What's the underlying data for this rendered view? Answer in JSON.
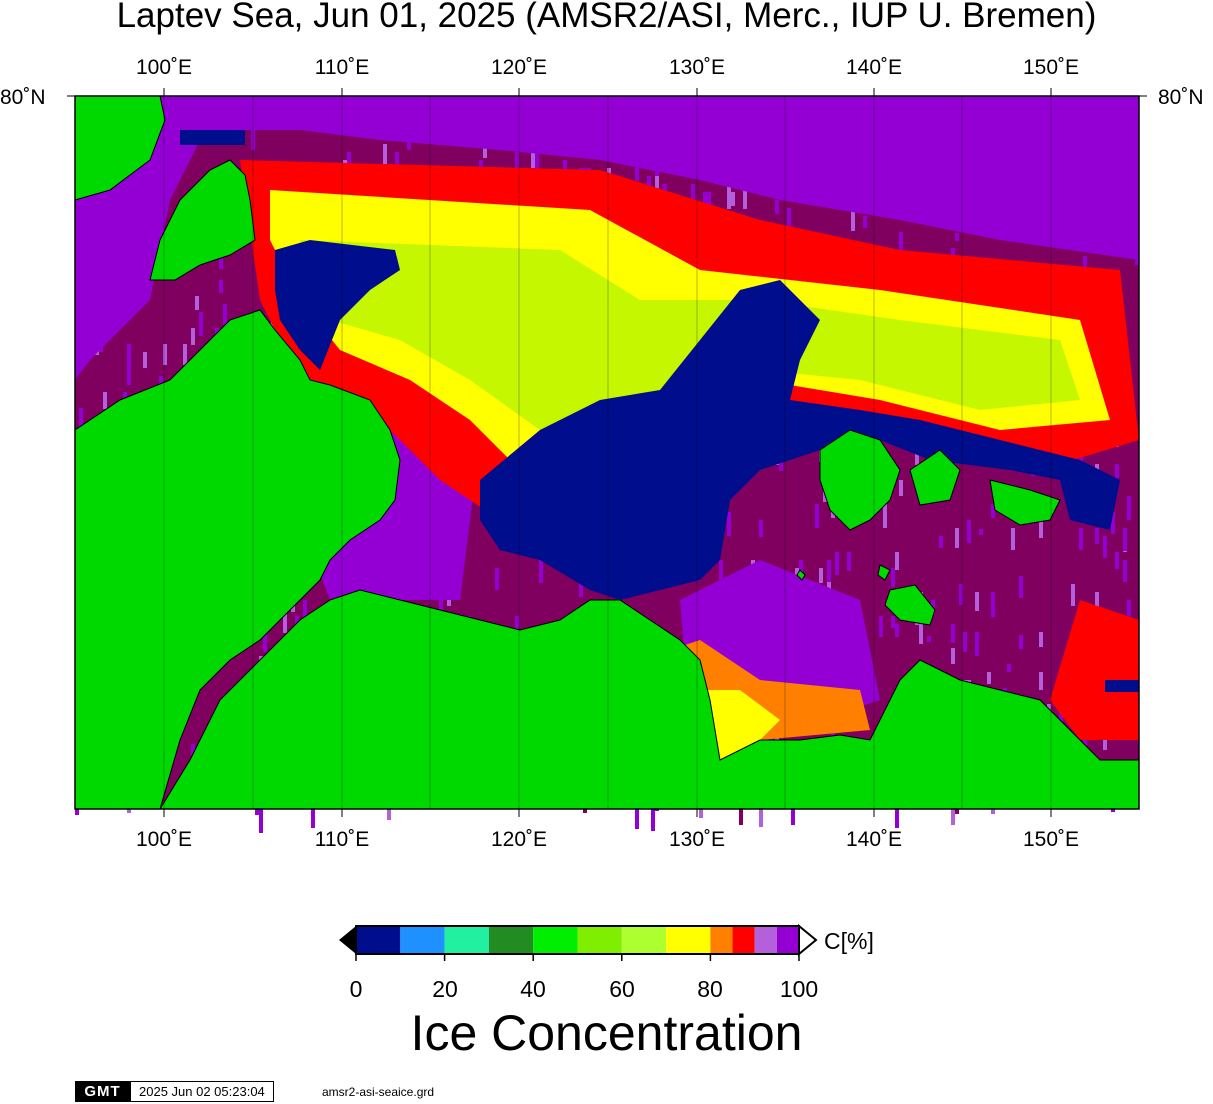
{
  "title": "Laptev Sea, Jun 01, 2025 (AMSR2/ASI, Merc., IUP U. Bremen)",
  "lon_ticks": [
    "100˚E",
    "110˚E",
    "120˚E",
    "130˚E",
    "140˚E",
    "150˚E"
  ],
  "lat_label": "80˚N",
  "colorbar": {
    "unit": "C[%]",
    "tick_labels": [
      "0",
      "20",
      "40",
      "60",
      "80",
      "100"
    ],
    "colors": [
      "#000d8c",
      "#1e90ff",
      "#20f0a0",
      "#228b22",
      "#00ee00",
      "#7fee00",
      "#adff2f",
      "#ffff00",
      "#ff7f00",
      "#ff0000",
      "#b45fdb",
      "#9400d3"
    ]
  },
  "legend_title": "Ice Concentration",
  "colors": {
    "land": "#00d900",
    "dense_ice": "#7f005f",
    "open_water": "#000d8c",
    "high_ice": "#9400d3"
  },
  "footer": {
    "logo": "GMT",
    "timestamp": "2025 Jun 02 05:23:04",
    "filename": "amsr2-asi-seaice.grd"
  }
}
